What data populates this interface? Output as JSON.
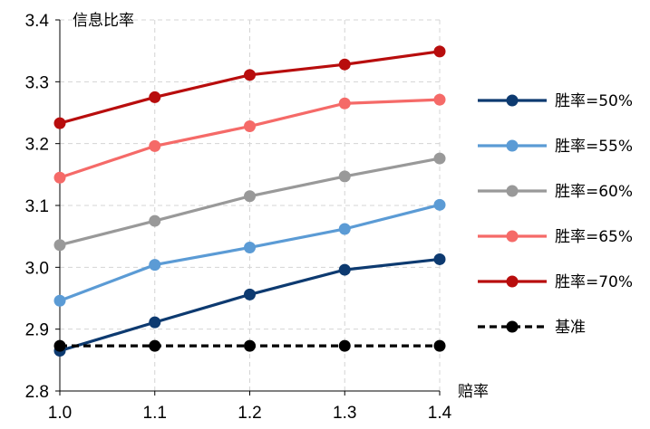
{
  "chart_data": {
    "type": "line",
    "title": "",
    "ylabel": "信息比率",
    "xlabel": "赔率",
    "x": [
      1.0,
      1.1,
      1.2,
      1.3,
      1.4
    ],
    "x_tick_labels": [
      "1.0",
      "1.1",
      "1.2",
      "1.3",
      "1.4"
    ],
    "ylim": [
      2.8,
      3.4
    ],
    "y_ticks": [
      2.8,
      2.9,
      3.0,
      3.1,
      3.2,
      3.3,
      3.4
    ],
    "y_tick_labels": [
      "2.8",
      "2.9",
      "3.0",
      "3.1",
      "3.2",
      "3.3",
      "3.4"
    ],
    "grid": true,
    "legend_position": "right",
    "series": [
      {
        "name": "胜率=50%",
        "color": "#0d3a70",
        "dashed": false,
        "values": [
          2.865,
          2.911,
          2.956,
          2.996,
          3.013
        ]
      },
      {
        "name": "胜率=55%",
        "color": "#5b9bd5",
        "dashed": false,
        "values": [
          2.946,
          3.004,
          3.032,
          3.062,
          3.101
        ]
      },
      {
        "name": "胜率=60%",
        "color": "#999999",
        "dashed": false,
        "values": [
          3.036,
          3.075,
          3.115,
          3.147,
          3.176
        ]
      },
      {
        "name": "胜率=65%",
        "color": "#f56a68",
        "dashed": false,
        "values": [
          3.145,
          3.196,
          3.228,
          3.265,
          3.271
        ]
      },
      {
        "name": "胜率=70%",
        "color": "#b80d0d",
        "dashed": false,
        "values": [
          3.233,
          3.275,
          3.311,
          3.328,
          3.349
        ]
      },
      {
        "name": "基准",
        "color": "#000000",
        "dashed": true,
        "values": [
          2.873,
          2.873,
          2.873,
          2.873,
          2.873
        ]
      }
    ]
  }
}
